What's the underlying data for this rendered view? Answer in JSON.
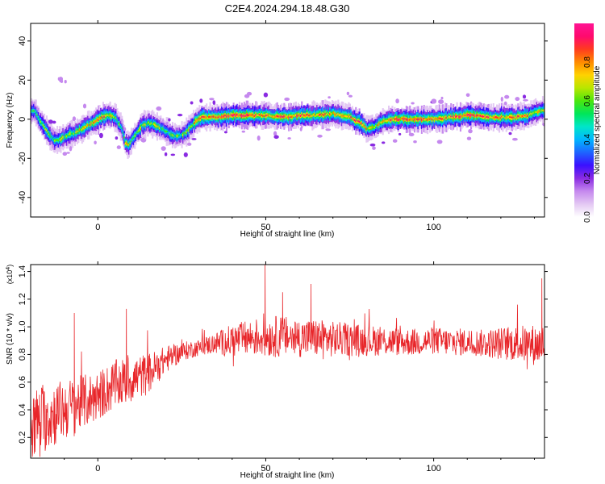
{
  "title": "C2E4.2024.294.18.48.G30",
  "chart_data": [
    {
      "type": "heatmap",
      "xlabel": "Height of straight line (km)",
      "ylabel": "Frequency (Hz)",
      "xlim": [
        -20,
        133
      ],
      "ylim": [
        -50,
        49
      ],
      "xticks": [
        0,
        50,
        100
      ],
      "yticks": [
        -40,
        -20,
        0,
        20,
        40
      ],
      "colorbar": {
        "label": "Normalized spectral amplitude",
        "range": [
          0,
          1
        ],
        "ticks": [
          "0.0",
          "0.2",
          "0.4",
          "0.6",
          "0.8"
        ],
        "colors": [
          "#ffffff",
          "#e3c8f3",
          "#c589ee",
          "#8a2be2",
          "#3a10ff",
          "#1e64ff",
          "#00b6ff",
          "#00e6c8",
          "#00e65a",
          "#4be60e",
          "#b9e600",
          "#ffd200",
          "#ff8a00",
          "#ff3b1f",
          "#ff0a6e",
          "#ff1493"
        ]
      },
      "ridge": {
        "x": [
          -19,
          -17,
          -15,
          -13,
          -11,
          -9,
          -7,
          -5,
          -3,
          -1,
          1,
          3,
          5,
          7,
          8,
          9,
          11,
          13,
          15,
          17,
          19,
          21,
          23,
          25,
          27,
          29,
          31,
          35,
          40,
          45,
          50,
          55,
          60,
          65,
          70,
          75,
          78,
          80,
          82,
          85,
          88,
          92,
          96,
          100,
          105,
          110,
          113,
          116,
          120,
          124,
          128,
          131,
          133
        ],
        "y": [
          4,
          -2,
          -7,
          -11,
          -10,
          -8,
          -7,
          -5,
          -3,
          -1,
          1,
          2,
          1,
          -5,
          -12,
          -13,
          -8,
          -3,
          -2,
          -3,
          -5,
          -7,
          -9,
          -8,
          -5,
          -1,
          1,
          1,
          2,
          2,
          2,
          1,
          2,
          2,
          3,
          1,
          -2,
          -5,
          -4,
          -1,
          0,
          0,
          0,
          0,
          1,
          2,
          2,
          1,
          1,
          1,
          2,
          4,
          5
        ],
        "amp": [
          0.5,
          0.6,
          0.6,
          0.55,
          0.6,
          0.65,
          0.6,
          0.7,
          0.7,
          0.75,
          0.8,
          0.7,
          0.6,
          0.6,
          0.7,
          0.65,
          0.6,
          0.6,
          0.6,
          0.6,
          0.6,
          0.55,
          0.55,
          0.6,
          0.65,
          0.7,
          0.8,
          0.85,
          0.9,
          0.85,
          0.8,
          0.85,
          0.8,
          0.75,
          0.7,
          0.75,
          0.8,
          0.7,
          0.65,
          0.75,
          0.8,
          0.85,
          0.8,
          0.75,
          0.8,
          0.85,
          0.8,
          0.8,
          0.75,
          0.8,
          0.75,
          0.7,
          0.7
        ]
      }
    },
    {
      "type": "line",
      "xlabel": "Height of straight line (km)",
      "ylabel": "SNR (10 * v/v)",
      "scale_note": "(x10",
      "scale_exp": "4",
      "scale_close": ")",
      "xlim": [
        -20,
        133
      ],
      "ylim": [
        0.05,
        1.45
      ],
      "xticks": [
        0,
        50,
        100
      ],
      "yticks": [
        0.2,
        0.4,
        0.6,
        0.8,
        1.0,
        1.2,
        1.4
      ],
      "series": [
        {
          "color": "#e8262a",
          "trend": {
            "x": [
              -20,
              -15,
              -10,
              -5,
              0,
              5,
              10,
              15,
              20,
              25,
              30,
              35,
              40,
              45,
              50,
              55,
              60,
              65,
              70,
              75,
              80,
              85,
              90,
              95,
              100,
              105,
              110,
              115,
              120,
              125,
              130,
              133
            ],
            "y": [
              0.3,
              0.35,
              0.4,
              0.45,
              0.5,
              0.58,
              0.62,
              0.66,
              0.76,
              0.82,
              0.85,
              0.88,
              0.9,
              0.92,
              0.93,
              0.93,
              0.92,
              0.92,
              0.91,
              0.91,
              0.9,
              0.9,
              0.89,
              0.89,
              0.9,
              0.89,
              0.89,
              0.88,
              0.88,
              0.88,
              0.87,
              0.87
            ],
            "spread": [
              0.25,
              0.25,
              0.22,
              0.2,
              0.18,
              0.18,
              0.17,
              0.15,
              0.1,
              0.07,
              0.06,
              0.08,
              0.12,
              0.13,
              0.15,
              0.15,
              0.14,
              0.14,
              0.13,
              0.12,
              0.11,
              0.11,
              0.1,
              0.1,
              0.1,
              0.1,
              0.1,
              0.1,
              0.12,
              0.13,
              0.15,
              0.15
            ]
          },
          "peaks": [
            {
              "x": 49.8,
              "y": 1.45
            },
            {
              "x": 132.2,
              "y": 1.35
            },
            {
              "x": 63.5,
              "y": 1.31
            },
            {
              "x": -7.0,
              "y": 1.1
            },
            {
              "x": 8.5,
              "y": 1.13
            },
            {
              "x": 55.0,
              "y": 1.25
            },
            {
              "x": -19.5,
              "y": 0.06
            }
          ]
        }
      ]
    }
  ]
}
